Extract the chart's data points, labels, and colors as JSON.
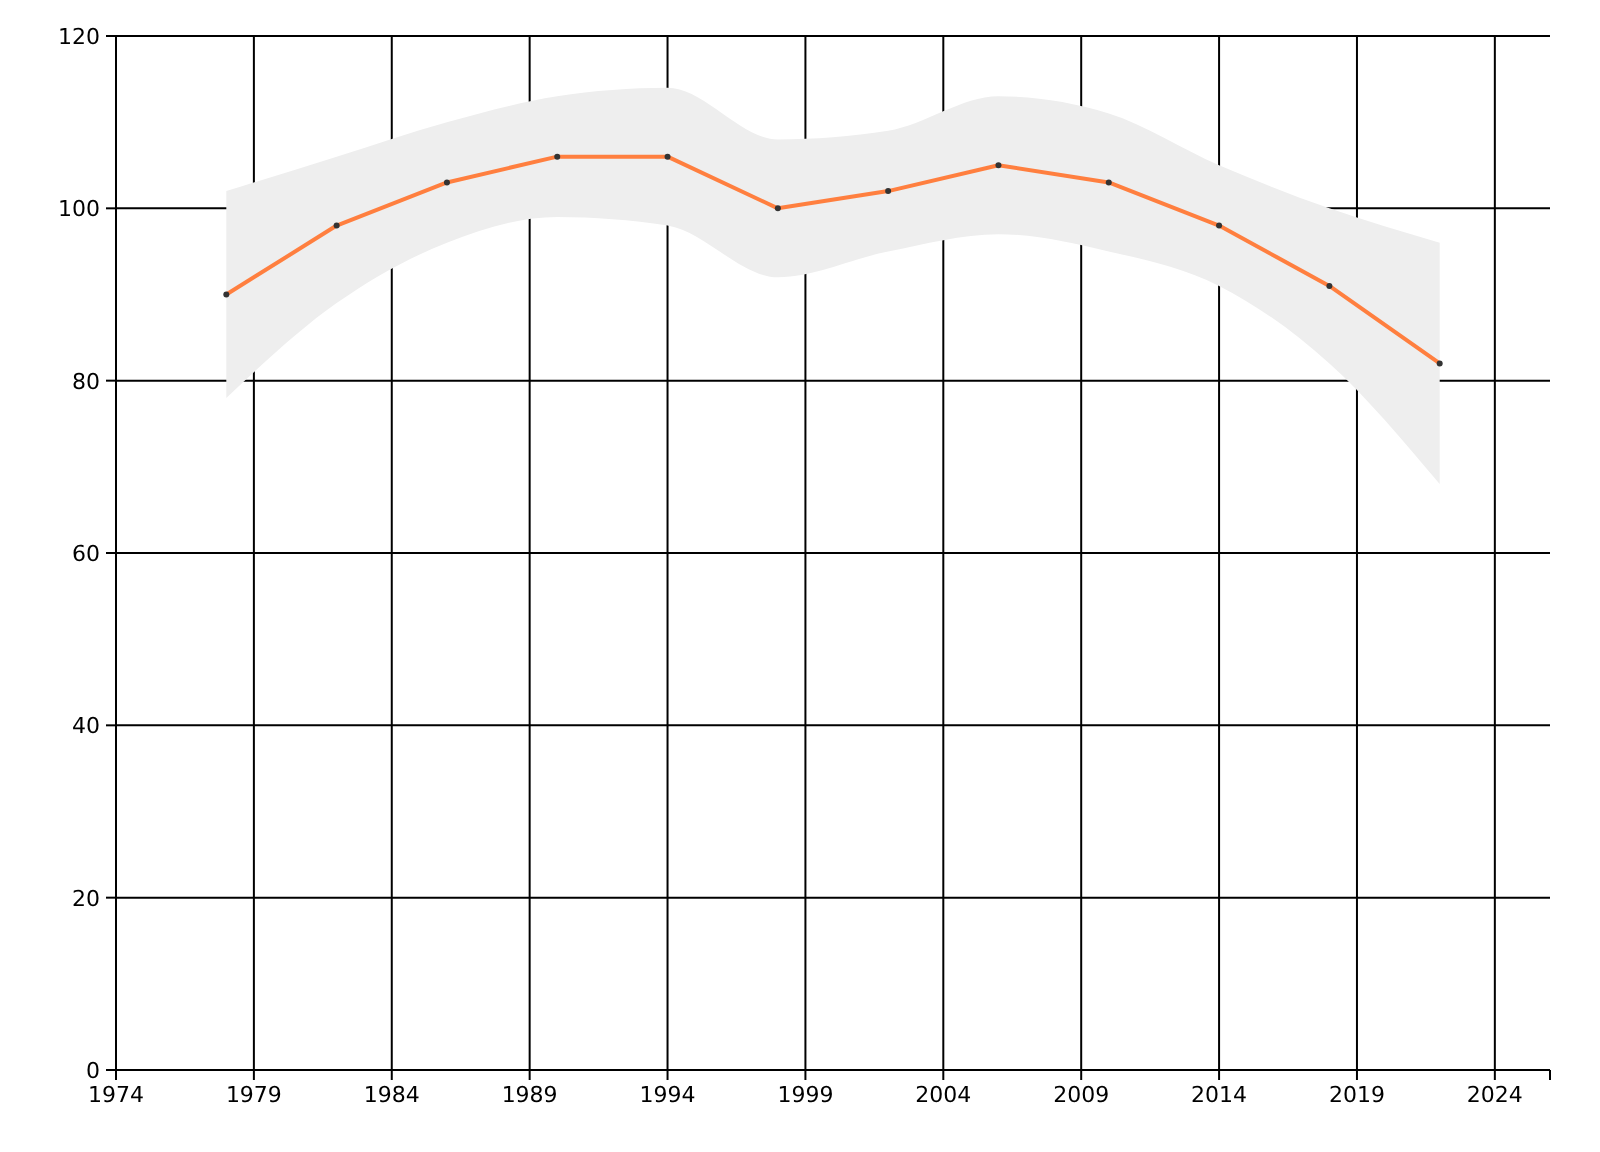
{
  "chart_data": {
    "type": "line",
    "x": [
      1978,
      1982,
      1986,
      1990,
      1994,
      1998,
      2002,
      2006,
      2010,
      2014,
      2018,
      2022
    ],
    "series": [
      {
        "color": "#ff7f3f",
        "values": [
          90,
          98,
          103,
          106,
          106,
          100,
          102,
          105,
          103,
          98,
          91,
          82
        ],
        "lower": [
          78,
          89,
          96,
          99,
          98,
          92,
          95,
          97,
          95,
          91,
          82,
          68
        ],
        "upper": [
          102,
          106,
          110,
          113,
          114,
          108,
          109,
          113,
          111,
          105,
          100,
          96
        ]
      }
    ],
    "xlim": [
      1974,
      2026
    ],
    "xticks": [
      1974,
      1979,
      1984,
      1989,
      1994,
      1999,
      2004,
      2009,
      2014,
      2019,
      2024
    ],
    "ylim": [
      0,
      120
    ],
    "yticks": [
      0,
      20,
      40,
      60,
      80,
      100,
      120
    ],
    "grid": true,
    "marker": "circle",
    "line_style": "solid"
  }
}
